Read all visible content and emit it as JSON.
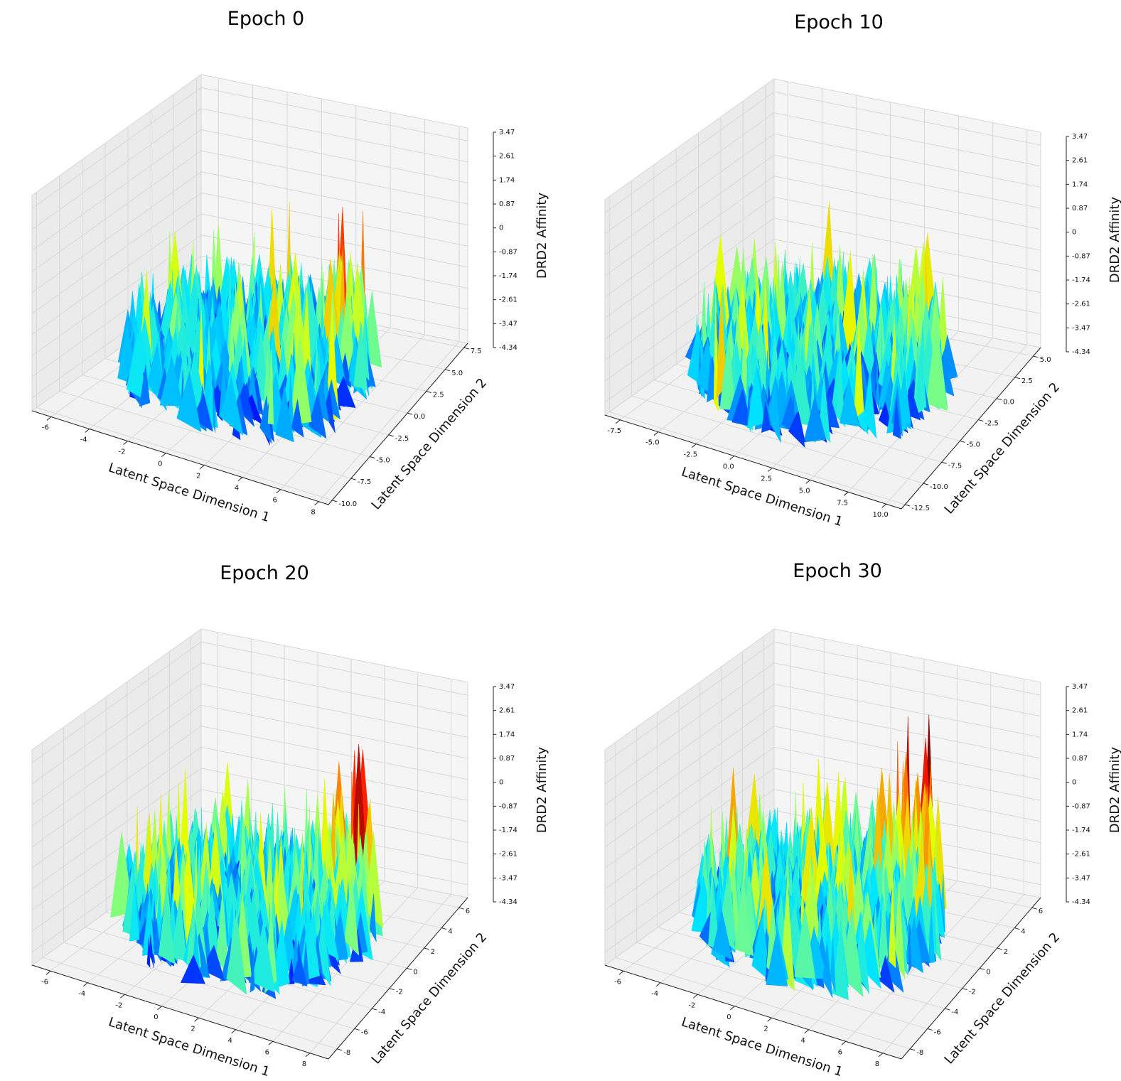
{
  "figure": {
    "colormap": [
      "#00007f",
      "#0000ff",
      "#007fff",
      "#00e5ff",
      "#7fff7f",
      "#e5ff00",
      "#ff7f00",
      "#ff1a00",
      "#7f0000"
    ]
  },
  "chart_data": [
    {
      "type": "surface",
      "title": "Epoch 0",
      "xlabel": "Latent Space Dimension 1",
      "ylabel": "Latent Space Dimension 2",
      "zlabel": "DRD2 Affinity",
      "xticks": [
        "-6",
        "-4",
        "-2",
        "0",
        "2",
        "4",
        "6",
        "8"
      ],
      "xticks_values": [
        -6,
        -4,
        -2,
        0,
        2,
        4,
        6,
        8
      ],
      "xlim": [
        -7,
        8.5
      ],
      "yticks": [
        "-10.0",
        "-7.5",
        "-5.0",
        "-2.5",
        "0.0",
        "2.5",
        "5.0",
        "7.5"
      ],
      "yticks_values": [
        -10,
        -7.5,
        -5,
        -2.5,
        0,
        2.5,
        5,
        7.5
      ],
      "ylim": [
        -10.5,
        8
      ],
      "zticks": [
        "-4.34",
        "-3.47",
        "-2.61",
        "-1.74",
        "-0.87",
        "0",
        "0.87",
        "1.74",
        "2.61",
        "3.47"
      ],
      "zlim": [
        -4.34,
        3.47
      ],
      "peak_affinity": -0.5,
      "mean_affinity": -2.2,
      "hotspot": [
        5,
        2
      ]
    },
    {
      "type": "surface",
      "title": "Epoch 10",
      "xlabel": "Latent Space Dimension 1",
      "ylabel": "Latent Space Dimension 2",
      "zlabel": "DRD2 Affinity",
      "xticks": [
        "-7.5",
        "-5.0",
        "-2.5",
        "0.0",
        "2.5",
        "5.0",
        "7.5",
        "10.0"
      ],
      "xticks_values": [
        -7.5,
        -5,
        -2.5,
        0,
        2.5,
        5,
        7.5,
        10
      ],
      "xlim": [
        -8.5,
        11
      ],
      "yticks": [
        "-12.5",
        "-10.0",
        "-7.5",
        "-5.0",
        "-2.5",
        "0.0",
        "2.5",
        "5.0"
      ],
      "yticks_values": [
        -12.5,
        -10,
        -7.5,
        -5,
        -2.5,
        0,
        2.5,
        5
      ],
      "ylim": [
        -13,
        6
      ],
      "zticks": [
        "-4.34",
        "-3.47",
        "-2.61",
        "-1.74",
        "-0.87",
        "0",
        "0.87",
        "1.74",
        "2.61",
        "3.47"
      ],
      "zlim": [
        -4.34,
        3.47
      ],
      "peak_affinity": 1.3,
      "mean_affinity": -2.0,
      "hotspot": [
        8,
        3
      ]
    },
    {
      "type": "surface",
      "title": "Epoch 20",
      "xlabel": "Latent Space Dimension 1",
      "ylabel": "Latent Space Dimension 2",
      "zlabel": "DRD2 Affinity",
      "xticks": [
        "-6",
        "-4",
        "-2",
        "0",
        "2",
        "4",
        "6",
        "8"
      ],
      "xticks_values": [
        -6,
        -4,
        -2,
        0,
        2,
        4,
        6,
        8
      ],
      "xlim": [
        -7,
        9
      ],
      "yticks": [
        "-8",
        "-6",
        "-4",
        "-2",
        "0",
        "2",
        "4",
        "6"
      ],
      "yticks_values": [
        -8,
        -6,
        -4,
        -2,
        0,
        2,
        4,
        6
      ],
      "ylim": [
        -9,
        7
      ],
      "zticks": [
        "-4.34",
        "-3.47",
        "-2.61",
        "-1.74",
        "-0.87",
        "0",
        "0.87",
        "1.74",
        "2.61",
        "3.47"
      ],
      "zlim": [
        -4.34,
        3.47
      ],
      "peak_affinity": 2.0,
      "mean_affinity": -2.0,
      "hotspot": [
        6,
        3
      ]
    },
    {
      "type": "surface",
      "title": "Epoch 30",
      "xlabel": "Latent Space Dimension 1",
      "ylabel": "Latent Space Dimension 2",
      "zlabel": "DRD2 Affinity",
      "xticks": [
        "-6",
        "-4",
        "-2",
        "0",
        "2",
        "4",
        "6",
        "8"
      ],
      "xticks_values": [
        -6,
        -4,
        -2,
        0,
        2,
        4,
        6,
        8
      ],
      "xlim": [
        -7,
        9
      ],
      "yticks": [
        "-8",
        "-6",
        "-4",
        "-2",
        "0",
        "2",
        "4",
        "6"
      ],
      "yticks_values": [
        -8,
        -6,
        -4,
        -2,
        0,
        2,
        4,
        6
      ],
      "ylim": [
        -9,
        7
      ],
      "zticks": [
        "-4.34",
        "-3.47",
        "-2.61",
        "-1.74",
        "-0.87",
        "0",
        "0.87",
        "1.74",
        "2.61",
        "3.47"
      ],
      "zlim": [
        -4.34,
        3.47
      ],
      "peak_affinity": 3.1,
      "mean_affinity": -1.8,
      "hotspot": [
        5,
        4
      ]
    }
  ]
}
